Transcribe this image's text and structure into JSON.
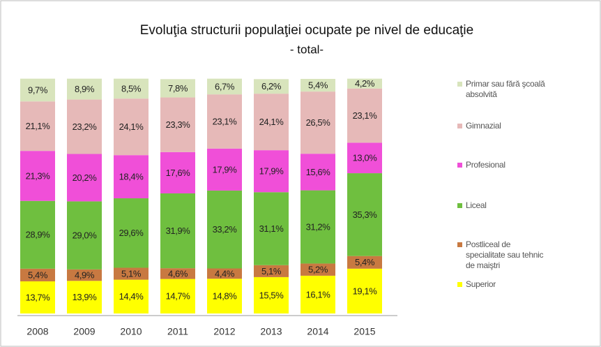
{
  "chart_data": {
    "type": "stacked_bar",
    "title": "Evoluţia structurii populaţiei ocupate pe nivel de educaţie",
    "subtitle": "- total-",
    "categories": [
      "2008",
      "2009",
      "2010",
      "2011",
      "2012",
      "2013",
      "2014",
      "2015"
    ],
    "series": [
      {
        "name": "Superior",
        "color": "#ffff00",
        "values": [
          13.7,
          13.9,
          14.4,
          14.7,
          14.8,
          15.5,
          16.1,
          19.1
        ],
        "value_labels": [
          "13,7%",
          "13,9%",
          "14,4%",
          "14,7%",
          "14,8%",
          "15,5%",
          "16,1%",
          "19,1%"
        ]
      },
      {
        "name": "Postliceal de specialitate sau tehnic de maiştri",
        "color": "#c87941",
        "values": [
          5.4,
          4.9,
          5.1,
          4.6,
          4.4,
          5.1,
          5.2,
          5.4
        ],
        "value_labels": [
          "5,4%",
          "4,9%",
          "5,1%",
          "4,6%",
          "4,4%",
          "5,1%",
          "5,2%",
          "5,4%"
        ]
      },
      {
        "name": "Liceal",
        "color": "#6fbf3f",
        "values": [
          28.9,
          29.0,
          29.6,
          31.9,
          33.2,
          31.1,
          31.2,
          35.3
        ],
        "value_labels": [
          "28,9%",
          "29,0%",
          "29,6%",
          "31,9%",
          "33,2%",
          "31,1%",
          "31,2%",
          "35,3%"
        ]
      },
      {
        "name": "Profesional",
        "color": "#f04fd8",
        "values": [
          21.3,
          20.2,
          18.4,
          17.6,
          17.9,
          17.9,
          15.6,
          13.0
        ],
        "value_labels": [
          "21,3%",
          "20,2%",
          "18,4%",
          "17,6%",
          "17,9%",
          "17,9%",
          "15,6%",
          "13,0%"
        ]
      },
      {
        "name": "Gimnazial",
        "color": "#e6b9b8",
        "values": [
          21.1,
          23.2,
          24.1,
          23.3,
          23.1,
          24.1,
          26.5,
          23.1
        ],
        "value_labels": [
          "21,1%",
          "23,2%",
          "24,1%",
          "23,3%",
          "23,1%",
          "24,1%",
          "26,5%",
          "23,1%"
        ]
      },
      {
        "name": "Primar sau fără şcoală absolvită",
        "color": "#d8e4bc",
        "values": [
          9.7,
          8.9,
          8.5,
          7.8,
          6.7,
          6.2,
          5.4,
          4.2
        ],
        "value_labels": [
          "9,7%",
          "8,9%",
          "8,5%",
          "7,8%",
          "6,7%",
          "6,2%",
          "5,4%",
          "4,2%"
        ]
      }
    ]
  }
}
